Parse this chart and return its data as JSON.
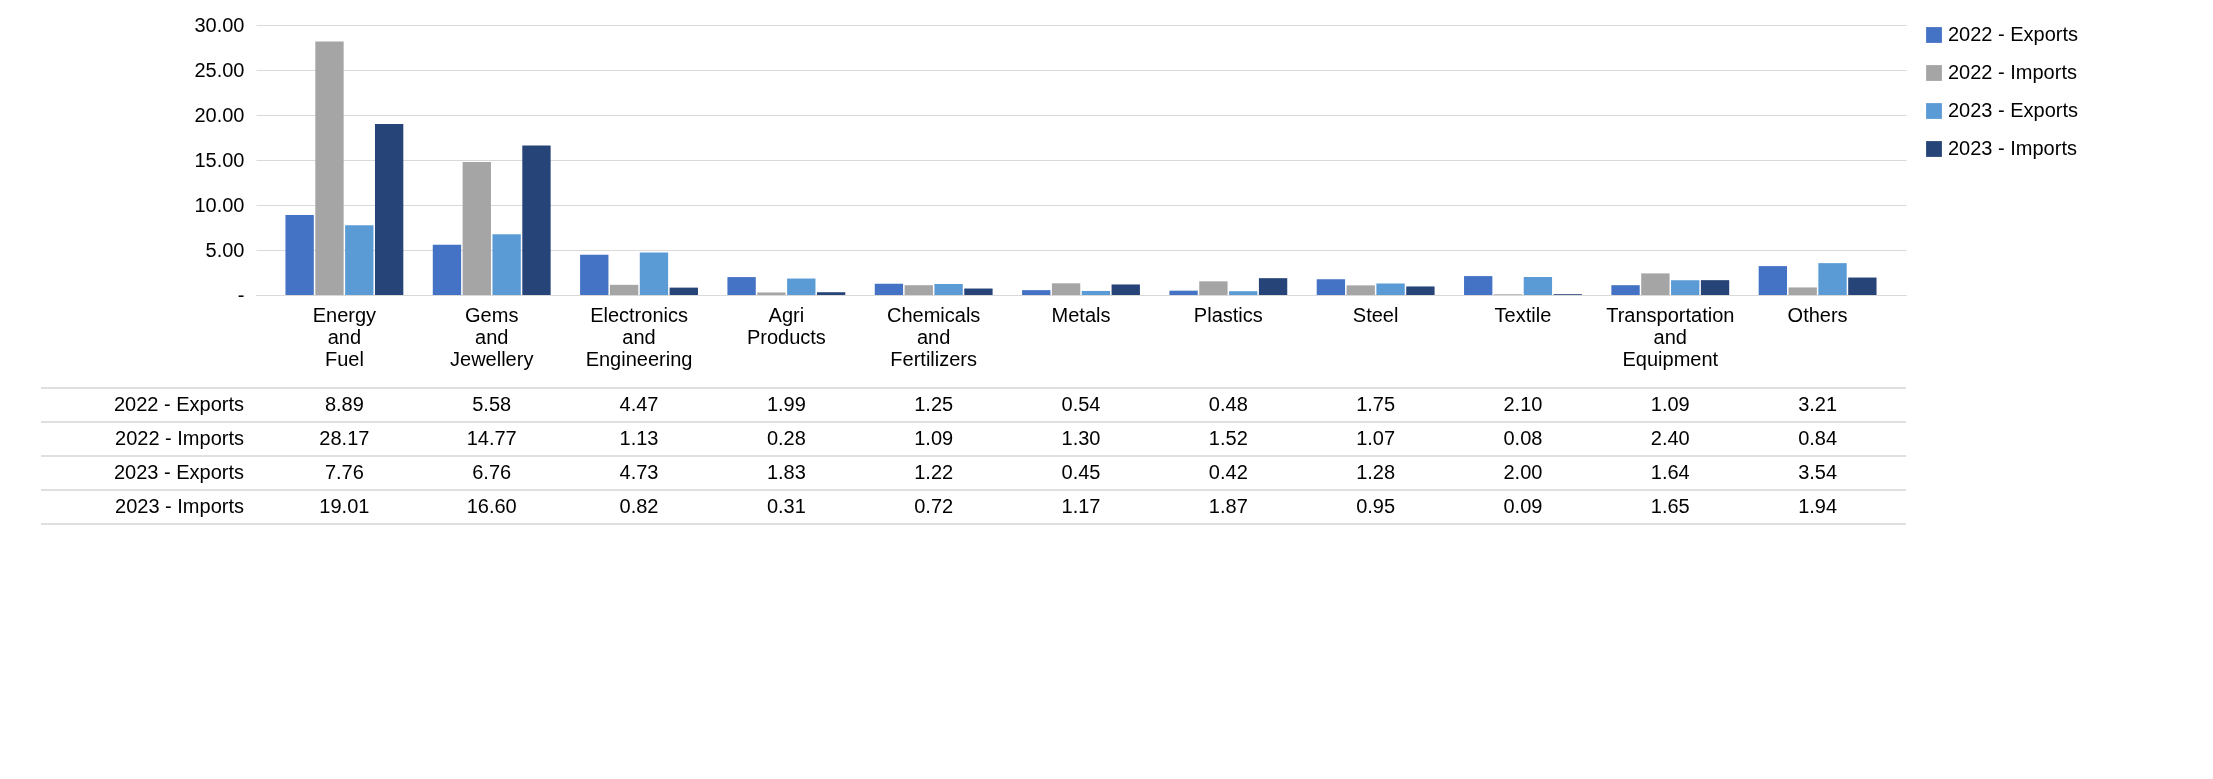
{
  "chart_data": {
    "type": "bar",
    "categories": [
      "Energy and Fuel",
      "Gems and Jewellery",
      "Electronics and Engineering",
      "Agri Products",
      "Chemicals and Fertilizers",
      "Metals",
      "Plastics",
      "Steel",
      "Textile",
      "Transportation and Equipment",
      "Others"
    ],
    "series": [
      {
        "name": "2022 - Exports",
        "color": "#4472c4",
        "values": [
          8.89,
          5.58,
          4.47,
          1.99,
          1.25,
          0.54,
          0.48,
          1.75,
          2.1,
          1.09,
          3.21
        ],
        "value_labels": [
          "8.89",
          "5.58",
          "4.47",
          "1.99",
          "1.25",
          "0.54",
          "0.48",
          "1.75",
          "2.10",
          "1.09",
          "3.21"
        ]
      },
      {
        "name": "2022 - Imports",
        "color": "#a5a5a5",
        "values": [
          28.17,
          14.77,
          1.13,
          0.28,
          1.09,
          1.3,
          1.52,
          1.07,
          0.08,
          2.4,
          0.84
        ],
        "value_labels": [
          "28.17",
          "14.77",
          "1.13",
          "0.28",
          "1.09",
          "1.30",
          "1.52",
          "1.07",
          "0.08",
          "2.40",
          "0.84"
        ]
      },
      {
        "name": "2023 - Exports",
        "color": "#5b9bd5",
        "values": [
          7.76,
          6.76,
          4.73,
          1.83,
          1.22,
          0.45,
          0.42,
          1.28,
          2.0,
          1.64,
          3.54
        ],
        "value_labels": [
          "7.76",
          "6.76",
          "4.73",
          "1.83",
          "1.22",
          "0.45",
          "0.42",
          "1.28",
          "2.00",
          "1.64",
          "3.54"
        ]
      },
      {
        "name": "2023 - Imports",
        "color": "#264478",
        "values": [
          19.01,
          16.6,
          0.82,
          0.31,
          0.72,
          1.17,
          1.87,
          0.95,
          0.09,
          1.65,
          1.94
        ],
        "value_labels": [
          "19.01",
          "16.60",
          "0.82",
          "0.31",
          "0.72",
          "1.17",
          "1.87",
          "0.95",
          "0.09",
          "1.65",
          "1.94"
        ]
      }
    ],
    "ylim": [
      0,
      30
    ],
    "yticks": [
      {
        "value": 0,
        "label": "-"
      },
      {
        "value": 5,
        "label": "5.00"
      },
      {
        "value": 10,
        "label": "10.00"
      },
      {
        "value": 15,
        "label": "15.00"
      },
      {
        "value": 20,
        "label": "20.00"
      },
      {
        "value": 25,
        "label": "25.00"
      },
      {
        "value": 30,
        "label": "30.00"
      }
    ],
    "grid": "y",
    "legend": "right"
  }
}
